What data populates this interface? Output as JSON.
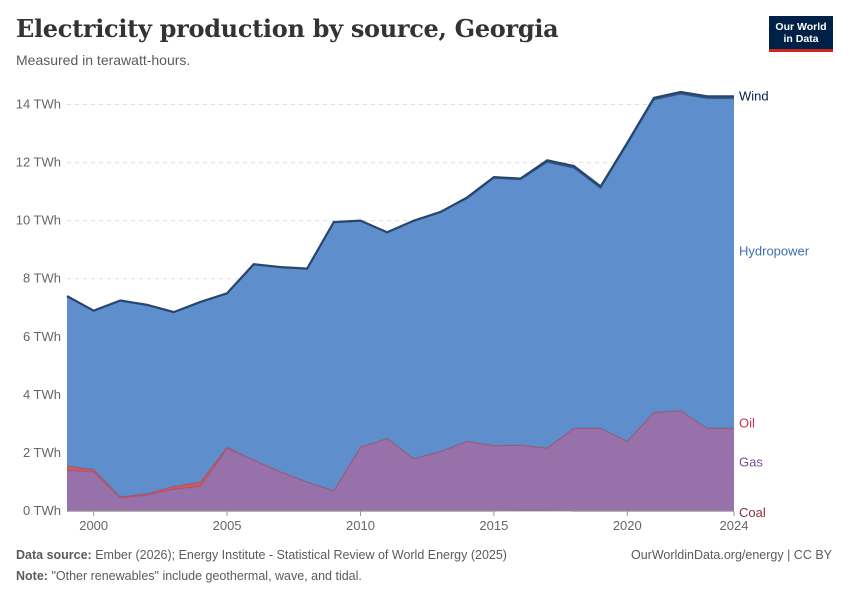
{
  "header": {
    "title": "Electricity production by source, Georgia",
    "subtitle": "Measured in terawatt-hours.",
    "logo_line1": "Our World",
    "logo_line2": "in Data"
  },
  "footer": {
    "source_label": "Data source:",
    "source_text": "Ember (2026); Energy Institute - Statistical Review of World Energy (2025)",
    "note_label": "Note:",
    "note_text": "\"Other renewables\" include geothermal, wave, and tidal.",
    "credit": "OurWorldinData.org/energy | CC BY"
  },
  "chart_data": {
    "type": "area",
    "stacked": true,
    "title": "Electricity production by source, Georgia",
    "ylabel": "TWh",
    "ylim": [
      0,
      14.5
    ],
    "x_ticks": [
      2000,
      2005,
      2010,
      2015,
      2020,
      2024
    ],
    "y_ticks": [
      {
        "value": 0,
        "label": "0 TWh"
      },
      {
        "value": 2,
        "label": "2 TWh"
      },
      {
        "value": 4,
        "label": "4 TWh"
      },
      {
        "value": 6,
        "label": "6 TWh"
      },
      {
        "value": 8,
        "label": "8 TWh"
      },
      {
        "value": 10,
        "label": "10 TWh"
      },
      {
        "value": 12,
        "label": "12 TWh"
      },
      {
        "value": 14,
        "label": "14 TWh"
      }
    ],
    "x": [
      1999,
      2000,
      2001,
      2002,
      2003,
      2004,
      2005,
      2006,
      2007,
      2008,
      2009,
      2010,
      2011,
      2012,
      2013,
      2014,
      2015,
      2016,
      2017,
      2018,
      2019,
      2020,
      2021,
      2022,
      2023,
      2024
    ],
    "series": [
      {
        "name": "Coal",
        "color": "#883039",
        "values": [
          0,
          0,
          0,
          0,
          0,
          0,
          0,
          0,
          0,
          0,
          0,
          0,
          0,
          0,
          0,
          0,
          0,
          0.02,
          0.02,
          0,
          0,
          0,
          0,
          0,
          0,
          0
        ]
      },
      {
        "name": "Gas",
        "color": "#8c62a0",
        "values": [
          1.4,
          1.35,
          0.45,
          0.55,
          0.75,
          0.85,
          2.15,
          1.75,
          1.35,
          1.0,
          0.7,
          2.2,
          2.5,
          1.8,
          2.05,
          2.4,
          2.25,
          2.25,
          2.15,
          2.85,
          2.85,
          2.4,
          3.4,
          3.45,
          2.85,
          2.85
        ]
      },
      {
        "name": "Oil",
        "color": "#c8484c",
        "values": [
          0.15,
          0.08,
          0.04,
          0.05,
          0.1,
          0.15,
          0.05,
          0,
          0,
          0,
          0,
          0,
          0,
          0,
          0,
          0,
          0,
          0,
          0,
          0,
          0,
          0,
          0,
          0,
          0,
          0
        ]
      },
      {
        "name": "Hydropower",
        "color": "#4c83c6",
        "values": [
          5.85,
          5.47,
          6.76,
          6.5,
          6.0,
          6.2,
          5.3,
          6.75,
          7.05,
          7.35,
          9.25,
          7.8,
          7.1,
          8.2,
          8.25,
          8.35,
          9.2,
          9.13,
          9.83,
          8.95,
          8.25,
          10.2,
          10.75,
          10.9,
          11.35,
          11.35
        ]
      },
      {
        "name": "Wind",
        "color": "#28466d",
        "values": [
          0,
          0,
          0,
          0,
          0,
          0,
          0,
          0,
          0,
          0,
          0,
          0,
          0,
          0,
          0,
          0.05,
          0.05,
          0.05,
          0.08,
          0.08,
          0.08,
          0.08,
          0.08,
          0.08,
          0.08,
          0.08
        ]
      }
    ]
  }
}
